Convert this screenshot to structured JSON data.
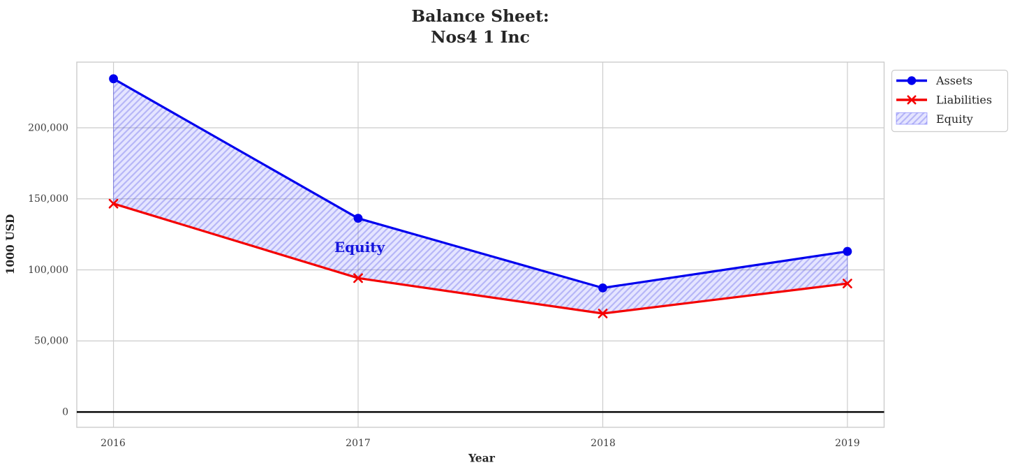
{
  "chart_data": {
    "type": "line",
    "title": "Balance Sheet:\nNos4 1 Inc",
    "title_lines": [
      "Balance Sheet:",
      "Nos4 1 Inc"
    ],
    "xlabel": "Year",
    "ylabel": "1000 USD",
    "x": [
      2016,
      2017,
      2018,
      2019
    ],
    "xticklabels": [
      "2016",
      "2017",
      "2018",
      "2019"
    ],
    "yticks": [
      0,
      50000,
      100000,
      150000,
      200000
    ],
    "yticklabels": [
      "0",
      "50,000",
      "100,000",
      "150,000",
      "200,000"
    ],
    "xlim": [
      2015.85,
      2019.15
    ],
    "ylim": [
      -10800,
      246200
    ],
    "grid": true,
    "grid_color": "#cccccc",
    "spine_color": "#cccccc",
    "zero_line": {
      "y": 0,
      "color": "#000000"
    },
    "legend_position": "outside-upper-right",
    "series": [
      {
        "name": "Assets",
        "color": "#0000ee",
        "marker": "circle",
        "values": [
          234500,
          136300,
          87300,
          113000
        ]
      },
      {
        "name": "Liabilities",
        "color": "#f40000",
        "marker": "x",
        "values": [
          146600,
          94200,
          69300,
          90400
        ]
      }
    ],
    "fill_between": {
      "name": "Equity",
      "upper": "Assets",
      "lower": "Liabilities",
      "fill_color": "rgba(0,0,255,0.10)",
      "hatch": "///",
      "hatch_color": "rgba(60,60,225,0.28)",
      "edge_color": "rgba(0,0,255,0.30)"
    },
    "annotation": {
      "text": "Equity",
      "color": "#1515dd",
      "x": 2017,
      "y": 116000
    }
  }
}
